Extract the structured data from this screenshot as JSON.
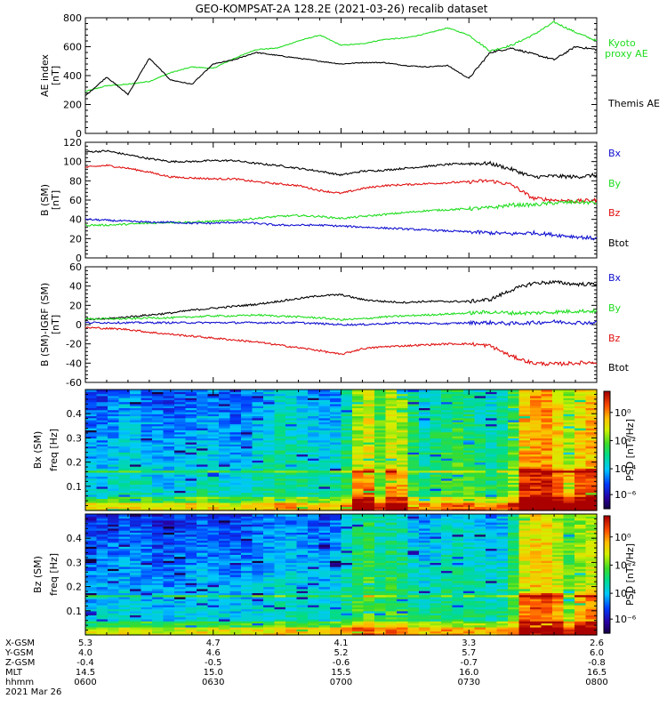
{
  "figure_title": "GEO-KOMPSAT-2A 128.2E (2021-03-26) recalib dataset",
  "colors": {
    "black": "#000000",
    "green": "#20dd20",
    "red": "#e01010",
    "blue": "#1010d0"
  },
  "chart_data": [
    {
      "type": "line",
      "ylabel": "AE index",
      "yunit": "[nT]",
      "ylim": [
        0,
        800
      ],
      "yticks": [
        "0",
        "200",
        "400",
        "600",
        "800"
      ],
      "x_minutes_since_0600": [
        0,
        5,
        10,
        15,
        20,
        25,
        30,
        35,
        40,
        45,
        50,
        55,
        60,
        65,
        70,
        75,
        80,
        85,
        90,
        95,
        100,
        105,
        110,
        115,
        120
      ],
      "series": [
        {
          "name": "Kyoto proxy AE",
          "color": "#20dd20",
          "values": [
            290,
            330,
            340,
            360,
            420,
            460,
            450,
            520,
            580,
            590,
            640,
            680,
            610,
            620,
            650,
            660,
            690,
            730,
            680,
            570,
            610,
            680,
            770,
            700,
            640
          ]
        },
        {
          "name": "Themis AE",
          "color": "#000000",
          "values": [
            260,
            390,
            270,
            520,
            370,
            340,
            480,
            510,
            560,
            540,
            520,
            500,
            480,
            490,
            490,
            470,
            460,
            470,
            380,
            560,
            590,
            550,
            510,
            600,
            580
          ]
        }
      ]
    },
    {
      "type": "line",
      "ylabel": "B (SM)",
      "yunit": "[nT]",
      "ylim": [
        0,
        120
      ],
      "yticks": [
        "0",
        "20",
        "40",
        "60",
        "80",
        "100",
        "120"
      ],
      "x_minutes_since_0600": [
        0,
        5,
        10,
        15,
        20,
        25,
        30,
        35,
        40,
        45,
        50,
        55,
        60,
        65,
        70,
        75,
        80,
        85,
        90,
        95,
        100,
        105,
        110,
        115,
        120
      ],
      "series": [
        {
          "name": "Bx",
          "label_color": "#1010d0",
          "color": "#000000",
          "values": [
            110,
            111,
            107,
            103,
            100,
            100,
            101,
            101,
            98,
            96,
            93,
            90,
            86,
            90,
            91,
            93,
            95,
            97,
            98,
            98,
            92,
            84,
            85,
            84,
            86
          ]
        },
        {
          "name": "By",
          "label_color": "#20dd20",
          "color": "#e01010",
          "values": [
            94,
            96,
            93,
            89,
            84,
            83,
            82,
            82,
            79,
            77,
            75,
            70,
            67,
            72,
            75,
            76,
            77,
            78,
            79,
            80,
            76,
            62,
            60,
            59,
            60
          ]
        },
        {
          "name": "Bz",
          "label_color": "#e01010",
          "color": "#20dd20",
          "values": [
            34,
            34,
            35,
            36,
            37,
            37,
            38,
            39,
            41,
            43,
            44,
            43,
            41,
            43,
            45,
            47,
            49,
            50,
            51,
            52,
            55,
            55,
            57,
            58,
            57
          ]
        },
        {
          "name": "Btot",
          "label_color": "#000000",
          "color": "#1010d0",
          "values": [
            40,
            39,
            38,
            37,
            37,
            36,
            36,
            37,
            36,
            34,
            34,
            34,
            33,
            32,
            31,
            30,
            29,
            28,
            27,
            26,
            25,
            26,
            24,
            22,
            20
          ]
        }
      ]
    },
    {
      "type": "line",
      "ylabel": "B (SM)-IGRF (SM)",
      "yunit": "[nT]",
      "ylim": [
        -60,
        60
      ],
      "yticks": [
        "-60",
        "-40",
        "-20",
        "0",
        "20",
        "40",
        "60"
      ],
      "x_minutes_since_0600": [
        0,
        5,
        10,
        15,
        20,
        25,
        30,
        35,
        40,
        45,
        50,
        55,
        60,
        65,
        70,
        75,
        80,
        85,
        90,
        95,
        100,
        105,
        110,
        115,
        120
      ],
      "series": [
        {
          "name": "Bx",
          "label_color": "#1010d0",
          "color": "#000000",
          "values": [
            5,
            6,
            8,
            10,
            12,
            15,
            17,
            19,
            21,
            24,
            27,
            30,
            31,
            26,
            24,
            23,
            24,
            24,
            24,
            26,
            36,
            43,
            44,
            42,
            42
          ]
        },
        {
          "name": "By",
          "label_color": "#20dd20",
          "color": "#20dd20",
          "values": [
            6,
            6,
            6,
            7,
            7,
            8,
            9,
            9,
            10,
            9,
            8,
            7,
            5,
            6,
            8,
            9,
            10,
            11,
            12,
            13,
            12,
            12,
            13,
            14,
            14
          ]
        },
        {
          "name": "Bz",
          "label_color": "#e01010",
          "color": "#1010d0",
          "values": [
            2,
            2,
            2,
            2,
            2,
            2,
            2,
            2,
            2,
            2,
            2,
            1,
            0,
            0,
            1,
            2,
            1,
            1,
            2,
            2,
            1,
            2,
            3,
            2,
            2
          ]
        },
        {
          "name": "Btot",
          "label_color": "#000000",
          "color": "#e01010",
          "values": [
            -3,
            -4,
            -5,
            -8,
            -10,
            -12,
            -14,
            -16,
            -18,
            -21,
            -24,
            -27,
            -31,
            -25,
            -23,
            -22,
            -21,
            -20,
            -20,
            -22,
            -33,
            -40,
            -41,
            -40,
            -39
          ]
        }
      ]
    },
    {
      "type": "heatmap",
      "ylabel": "Bx (SM)",
      "ysublabel": "freq",
      "yunit": "[Hz]",
      "ylim": [
        0,
        0.5
      ],
      "yticks": [
        "0.1",
        "0.2",
        "0.3",
        "0.4"
      ],
      "colorbar_label": "PSD [nT²/Hz]",
      "colorbar_ticks": [
        "10⁰",
        "10⁻²",
        "10⁻⁴",
        "10⁻⁶"
      ],
      "columns": 46,
      "column_activity": [
        0.2,
        0.2,
        0.25,
        0.3,
        0.28,
        0.25,
        0.22,
        0.18,
        0.2,
        0.25,
        0.3,
        0.28,
        0.22,
        0.2,
        0.25,
        0.3,
        0.35,
        0.4,
        0.38,
        0.35,
        0.3,
        0.28,
        0.3,
        0.45,
        0.7,
        0.8,
        0.6,
        0.75,
        0.7,
        0.5,
        0.4,
        0.45,
        0.5,
        0.55,
        0.5,
        0.45,
        0.4,
        0.45,
        0.6,
        0.9,
        0.95,
        0.95,
        0.85,
        0.7,
        0.85,
        0.9
      ]
    },
    {
      "type": "heatmap",
      "ylabel": "Bz (SM)",
      "ysublabel": "freq",
      "yunit": "[Hz]",
      "ylim": [
        0,
        0.5
      ],
      "yticks": [
        "0.1",
        "0.2",
        "0.3",
        "0.4"
      ],
      "colorbar_label": "PSD [nT²/Hz]",
      "colorbar_ticks": [
        "10⁰",
        "10⁻²",
        "10⁻⁴",
        "10⁻⁶"
      ],
      "columns": 46,
      "column_activity": [
        0.15,
        0.18,
        0.2,
        0.22,
        0.2,
        0.18,
        0.15,
        0.15,
        0.18,
        0.2,
        0.22,
        0.2,
        0.18,
        0.17,
        0.2,
        0.22,
        0.25,
        0.3,
        0.28,
        0.25,
        0.25,
        0.22,
        0.25,
        0.35,
        0.5,
        0.55,
        0.45,
        0.5,
        0.45,
        0.35,
        0.3,
        0.35,
        0.4,
        0.4,
        0.38,
        0.35,
        0.3,
        0.35,
        0.5,
        0.8,
        0.85,
        0.85,
        0.75,
        0.6,
        0.7,
        0.75
      ]
    }
  ],
  "ephemeris": {
    "labels": [
      "X-GSM",
      "Y-GSM",
      "Z-GSM",
      "MLT",
      "hhmm",
      "2021 Mar 26"
    ],
    "columns": [
      {
        "values": [
          "5.3",
          "4.0",
          "-0.4",
          "14.5",
          "0600"
        ]
      },
      {
        "values": [
          "4.7",
          "4.6",
          "-0.5",
          "15.0",
          "0630"
        ]
      },
      {
        "values": [
          "4.1",
          "5.2",
          "-0.6",
          "15.5",
          "0700"
        ]
      },
      {
        "values": [
          "3.3",
          "5.7",
          "-0.7",
          "16.0",
          "0730"
        ]
      },
      {
        "values": [
          "2.6",
          "6.0",
          "-0.8",
          "16.5",
          "0800"
        ]
      }
    ]
  }
}
